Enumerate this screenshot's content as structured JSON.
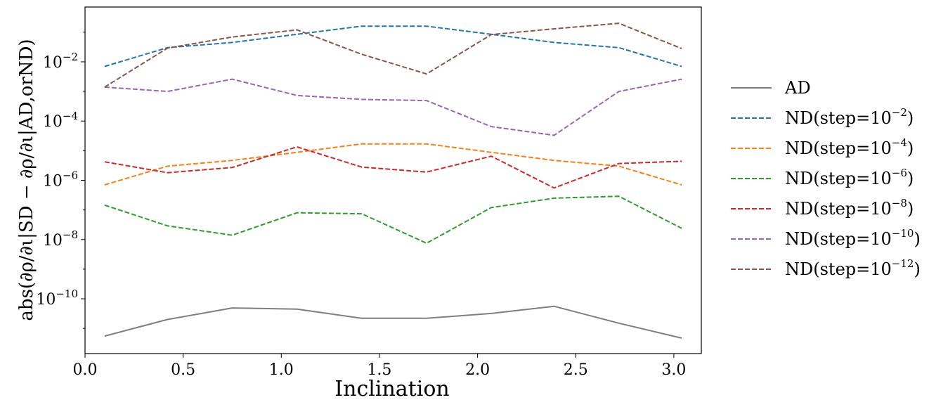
{
  "chart_data": {
    "type": "line",
    "title": "",
    "xlabel": "Inclination",
    "ylabel": "abs(∂ρ/∂ι|SD − ∂ρ/∂ι|AD,orND)",
    "yscale": "log",
    "xlim": [
      0.0,
      3.14
    ],
    "ylim_log10": [
      -11.85,
      -0.15
    ],
    "x_ticks": [
      0.0,
      0.5,
      1.0,
      1.5,
      2.0,
      2.5,
      3.0
    ],
    "x_tick_labels": [
      "0.0",
      "0.5",
      "1.0",
      "1.5",
      "2.0",
      "2.5",
      "3.0"
    ],
    "y_tick_exponents": [
      -2,
      -4,
      -6,
      -8,
      -10
    ],
    "y_tick_base": "10",
    "grid": false,
    "legend_position": "outside-right",
    "x": [
      0.1,
      0.42,
      0.75,
      1.08,
      1.41,
      1.74,
      2.07,
      2.39,
      2.72,
      3.04
    ],
    "series": [
      {
        "name": "AD",
        "style": "solid",
        "color": "#7f7f7f",
        "values": [
          5.5e-12,
          2e-11,
          4.9e-11,
          4.5e-11,
          2.2e-11,
          2.2e-11,
          3.2e-11,
          5.6e-11,
          1.5e-11,
          4.7e-12
        ]
      },
      {
        "name": "ND(step=10",
        "sup": "−2",
        "style": "dashed",
        "color": "#1f77b4",
        "values": [
          0.007,
          0.03,
          0.045,
          0.085,
          0.16,
          0.16,
          0.085,
          0.045,
          0.03,
          0.007
        ]
      },
      {
        "name": "ND(step=10",
        "sup": "−4",
        "style": "dashed",
        "color": "#ff7f0e",
        "values": [
          7e-07,
          3e-06,
          4.7e-06,
          8.8e-06,
          1.7e-05,
          1.7e-05,
          8.8e-06,
          4.7e-06,
          3e-06,
          7e-07
        ]
      },
      {
        "name": "ND(step=10",
        "sup": "−6",
        "style": "dashed",
        "color": "#2ca02c",
        "values": [
          1.45e-07,
          2.9e-08,
          1.4e-08,
          8e-08,
          7.4e-08,
          7.5e-09,
          1.2e-07,
          2.5e-07,
          2.9e-07,
          2.4e-08
        ]
      },
      {
        "name": "ND(step=10",
        "sup": "−8",
        "style": "dashed",
        "color": "#d62728",
        "values": [
          4.2e-06,
          1.8e-06,
          2.7e-06,
          1.35e-05,
          2.8e-06,
          1.9e-06,
          6.5e-06,
          5.5e-07,
          3.7e-06,
          4.4e-06
        ]
      },
      {
        "name": "ND(step=10",
        "sup": "−10",
        "style": "dashed",
        "color": "#9467bd",
        "values": [
          0.0014,
          0.001,
          0.0026,
          0.00073,
          0.00054,
          0.00049,
          6.5e-05,
          3.3e-05,
          0.001,
          0.0026
        ]
      },
      {
        "name": "ND(step=10",
        "sup": "−12",
        "style": "dashed",
        "color": "#8c564b",
        "values": [
          0.0014,
          0.029,
          0.069,
          0.12,
          0.018,
          0.0039,
          0.083,
          0.13,
          0.2,
          0.028
        ]
      }
    ]
  }
}
